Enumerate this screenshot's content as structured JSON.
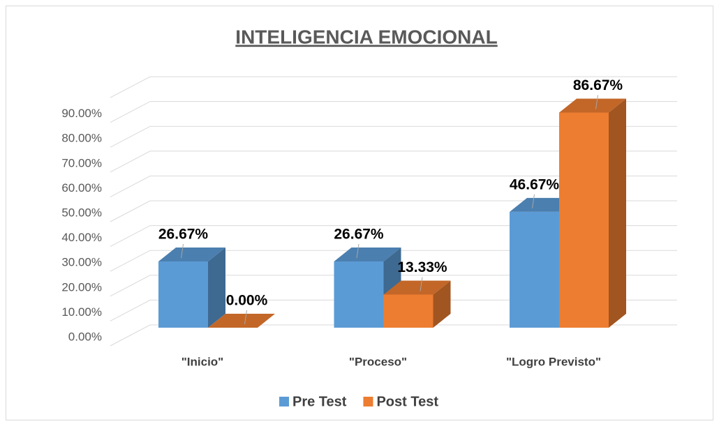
{
  "chart_data": {
    "type": "bar3d",
    "title": "INTELIGENCIA EMOCIONAL",
    "categories": [
      "\"Inicio\"",
      "\"Proceso\"",
      "\"Logro Previsto\""
    ],
    "series": [
      {
        "name": "Pre Test",
        "color": "#5b9bd5",
        "values": [
          26.67,
          26.67,
          46.67
        ],
        "value_labels": [
          "26.67%",
          "26.67%",
          "46.67%"
        ]
      },
      {
        "name": "Post Test",
        "color": "#ed7d31",
        "values": [
          0,
          13.33,
          86.67
        ],
        "value_labels": [
          "0.00%",
          "13.33%",
          "86.67%"
        ]
      }
    ],
    "ylim": [
      0,
      100
    ],
    "yticks": [
      {
        "value": 0,
        "label": "0.00%"
      },
      {
        "value": 10,
        "label": "10.00%"
      },
      {
        "value": 20,
        "label": "20.00%"
      },
      {
        "value": 30,
        "label": "30.00%"
      },
      {
        "value": 40,
        "label": "40.00%"
      },
      {
        "value": 50,
        "label": "50.00%"
      },
      {
        "value": 60,
        "label": "60.00%"
      },
      {
        "value": 70,
        "label": "70.00%"
      },
      {
        "value": 80,
        "label": "80.00%"
      },
      {
        "value": 90,
        "label": "90.00%"
      }
    ],
    "grid": true,
    "legend": "bottom"
  }
}
